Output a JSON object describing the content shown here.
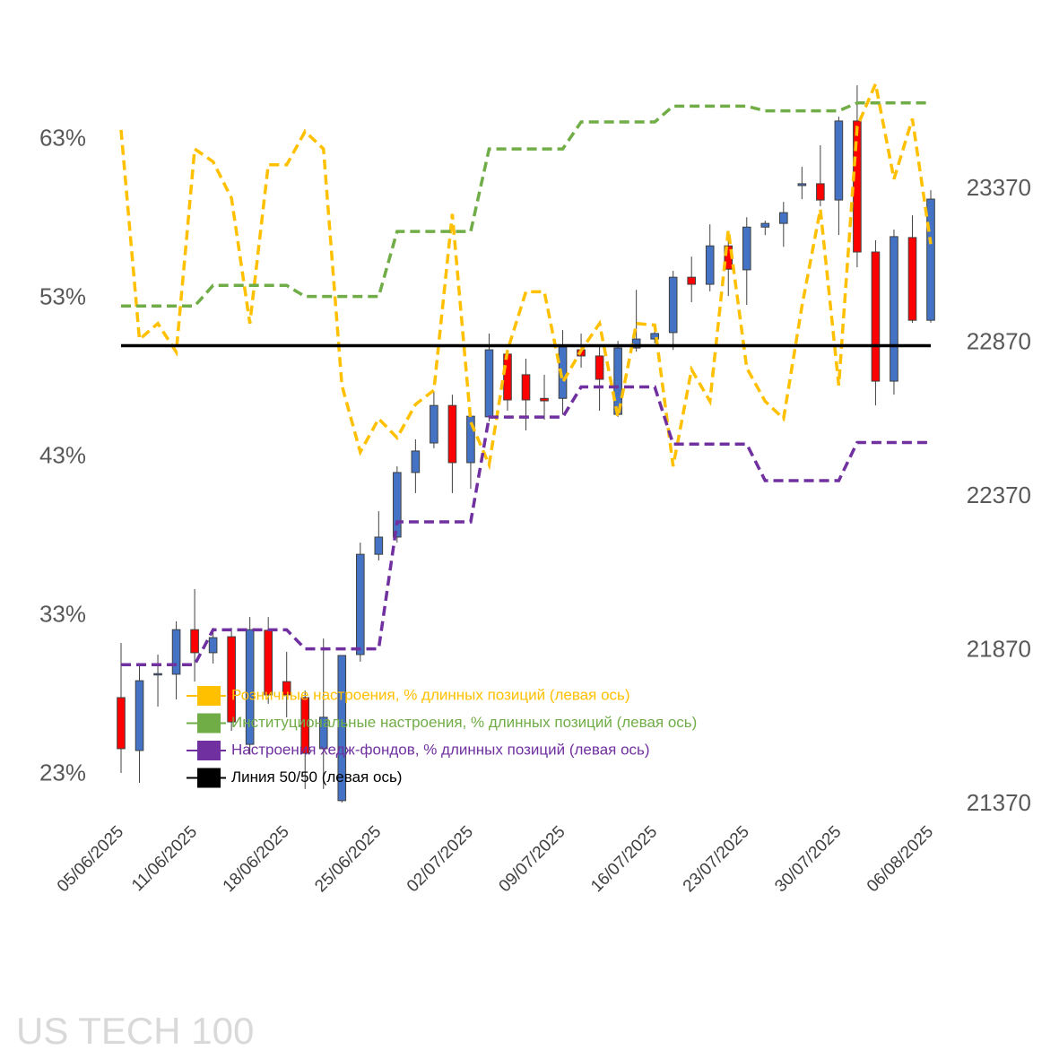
{
  "chart_data": {
    "type": "candlestick",
    "watermark": "US TECH 100",
    "categories": [
      "05/06/2025",
      null,
      null,
      null,
      "11/06/2025",
      null,
      null,
      null,
      null,
      "18/06/2025",
      null,
      null,
      null,
      null,
      "25/06/2025",
      null,
      null,
      null,
      null,
      "02/07/2025",
      null,
      null,
      null,
      null,
      "09/07/2025",
      null,
      null,
      null,
      null,
      "16/07/2025",
      null,
      null,
      null,
      null,
      "23/07/2025",
      null,
      null,
      null,
      null,
      "30/07/2025",
      null,
      null,
      null,
      null,
      "06/08/2025"
    ],
    "ylim": [
      21.1,
      66.7
    ],
    "yticks": [
      {
        "value": 23,
        "label": "23%"
      },
      {
        "value": 33,
        "label": "33%"
      },
      {
        "value": 43,
        "label": "43%"
      },
      {
        "value": 53,
        "label": "53%"
      },
      {
        "value": 63,
        "label": "63%"
      }
    ],
    "y2lim": [
      21370,
      23723
    ],
    "y2ticks": [
      21370,
      21870,
      22370,
      22870,
      23370
    ],
    "ohlc": {
      "axis": "y2",
      "up_color": "#4472c4",
      "down_color": "#ff0000",
      "open": [
        21717,
        21545,
        21793,
        21793,
        21938,
        21863,
        21915,
        21565,
        21936,
        21769,
        21717,
        21551,
        21382,
        21857,
        22183,
        22239,
        22449,
        22545,
        22667,
        22481,
        22630,
        22834,
        22767,
        22690,
        22690,
        22848,
        22828,
        22638,
        22854,
        22883,
        22904,
        23084,
        23061,
        23186,
        23108,
        23247,
        23259,
        23382,
        23388,
        23335,
        23592,
        23166,
        22746,
        23213,
        22944
      ],
      "high": [
        21895,
        21828,
        21857,
        21965,
        22070,
        21944,
        21944,
        21979,
        21979,
        21866,
        21740,
        21909,
        21854,
        22221,
        22323,
        22469,
        22557,
        22714,
        22702,
        22659,
        22901,
        22848,
        22819,
        22767,
        22912,
        22901,
        22863,
        22877,
        23043,
        22912,
        23105,
        23151,
        23256,
        23204,
        23279,
        23268,
        23329,
        23443,
        23513,
        23606,
        23708,
        23204,
        23239,
        23285,
        23367
      ],
      "low": [
        21472,
        21440,
        21688,
        21711,
        21769,
        21828,
        21609,
        21536,
        21697,
        21653,
        21420,
        21420,
        21376,
        21834,
        22163,
        22221,
        22382,
        22528,
        22382,
        22396,
        22615,
        22650,
        22586,
        22621,
        22638,
        22790,
        22650,
        22630,
        22842,
        22869,
        22848,
        23003,
        23038,
        23023,
        22994,
        23221,
        23183,
        23338,
        23315,
        23221,
        23116,
        22667,
        22702,
        22936,
        22936
      ],
      "close": [
        21551,
        21772,
        21795,
        21938,
        21863,
        21912,
        21638,
        21938,
        21726,
        21726,
        21536,
        21653,
        21854,
        22183,
        22239,
        22449,
        22519,
        22667,
        22481,
        22632,
        22848,
        22685,
        22685,
        22682,
        22857,
        22828,
        22752,
        22854,
        22883,
        22901,
        23084,
        23061,
        23186,
        23110,
        23247,
        23259,
        23294,
        23388,
        23335,
        23592,
        23166,
        22746,
        23216,
        22944,
        23338
      ]
    },
    "series": [
      {
        "name": "Розничные настроения, % длинных позиций (левая ось)",
        "color": "#ffc000",
        "dashed": true,
        "values": [
          63.6,
          50.4,
          51.4,
          49.6,
          62.4,
          61.6,
          59.3,
          51.4,
          61.4,
          61.4,
          63.5,
          62.4,
          47.5,
          43.3,
          45.4,
          44.2,
          46.3,
          47.2,
          58.3,
          45.2,
          42.5,
          49.7,
          53.4,
          53.4,
          47.7,
          49.7,
          51.4,
          45.5,
          51.4,
          51.3,
          42.4,
          48.5,
          46.5,
          57.3,
          48.6,
          46.5,
          45.4,
          52.5,
          58.6,
          47.5,
          63.8,
          66.5,
          60.5,
          64.3,
          56.4
        ]
      },
      {
        "name": "Институциональные настроения, % длинных позиций (левая ось)",
        "color": "#70ad47",
        "dashed": true,
        "values": [
          52.5,
          52.5,
          52.5,
          52.5,
          52.5,
          53.8,
          53.8,
          53.8,
          53.8,
          53.8,
          53.1,
          53.1,
          53.1,
          53.1,
          53.1,
          57.2,
          57.2,
          57.2,
          57.2,
          57.2,
          62.4,
          62.4,
          62.4,
          62.4,
          62.4,
          64.1,
          64.1,
          64.1,
          64.1,
          64.1,
          65.1,
          65.1,
          65.1,
          65.1,
          65.1,
          64.8,
          64.8,
          64.8,
          64.8,
          64.8,
          65.3,
          65.3,
          65.3,
          65.3,
          65.3
        ]
      },
      {
        "name": "Настроения хедж-фондов, % длинных позиций (левая ось)",
        "color": "#7030a0",
        "dashed": true,
        "values": [
          29.9,
          29.9,
          29.9,
          29.9,
          29.9,
          32.1,
          32.1,
          32.1,
          32.1,
          32.1,
          30.9,
          30.9,
          30.9,
          30.9,
          30.9,
          38.9,
          38.9,
          38.9,
          38.9,
          38.9,
          45.5,
          45.5,
          45.5,
          45.5,
          45.5,
          47.4,
          47.4,
          47.4,
          47.4,
          47.4,
          43.8,
          43.8,
          43.8,
          43.8,
          43.8,
          41.5,
          41.5,
          41.5,
          41.5,
          41.5,
          43.9,
          43.9,
          43.9,
          43.9,
          43.9
        ]
      },
      {
        "name": "Линия 50/50 (левая ось)",
        "color": "#000000",
        "dashed": false,
        "values": [
          50,
          50,
          50,
          50,
          50,
          50,
          50,
          50,
          50,
          50,
          50,
          50,
          50,
          50,
          50,
          50,
          50,
          50,
          50,
          50,
          50,
          50,
          50,
          50,
          50,
          50,
          50,
          50,
          50,
          50,
          50,
          50,
          50,
          50,
          50,
          50,
          50,
          50,
          50,
          50,
          50,
          50,
          50,
          50,
          50
        ]
      }
    ]
  }
}
